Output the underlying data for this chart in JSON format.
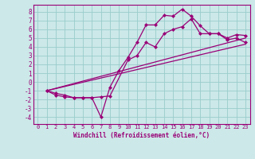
{
  "xlabel": "Windchill (Refroidissement éolien,°C)",
  "background_color": "#cce8e8",
  "grid_color": "#99cccc",
  "line_color": "#990077",
  "xlim": [
    -0.5,
    23.5
  ],
  "ylim": [
    -4.8,
    8.8
  ],
  "xticks": [
    0,
    1,
    2,
    3,
    4,
    5,
    6,
    7,
    8,
    9,
    10,
    11,
    12,
    13,
    14,
    15,
    16,
    17,
    18,
    19,
    20,
    21,
    22,
    23
  ],
  "yticks": [
    -4,
    -3,
    -2,
    -1,
    0,
    1,
    2,
    3,
    4,
    5,
    6,
    7,
    8
  ],
  "line1_x": [
    1,
    2,
    3,
    4,
    5,
    6,
    7,
    8,
    9,
    10,
    11,
    12,
    13,
    14,
    15,
    16,
    17,
    18,
    19,
    20,
    21,
    22,
    23
  ],
  "line1_y": [
    -1.0,
    -1.5,
    -1.7,
    -1.8,
    -1.8,
    -1.8,
    -4.0,
    -0.6,
    1.3,
    2.8,
    4.5,
    6.5,
    6.5,
    7.6,
    7.5,
    8.3,
    7.5,
    6.4,
    5.5,
    5.5,
    5.0,
    5.4,
    5.3
  ],
  "line2_x": [
    1,
    2,
    3,
    4,
    5,
    6,
    7,
    8,
    10,
    11,
    12,
    13,
    14,
    15,
    16,
    17,
    18,
    19,
    20,
    21,
    22,
    23
  ],
  "line2_y": [
    -1.0,
    -1.3,
    -1.5,
    -1.8,
    -1.8,
    -1.8,
    -1.7,
    -1.6,
    2.5,
    3.0,
    4.5,
    4.0,
    5.5,
    6.0,
    6.3,
    7.2,
    5.5,
    5.5,
    5.5,
    4.8,
    5.0,
    4.5
  ],
  "line3_x": [
    1,
    23
  ],
  "line3_y": [
    -1.0,
    5.0
  ],
  "line4_x": [
    1,
    23
  ],
  "line4_y": [
    -1.0,
    4.3
  ],
  "markersize": 2.5,
  "linewidth": 0.9,
  "tick_fontsize": 5.0,
  "xlabel_fontsize": 5.5
}
